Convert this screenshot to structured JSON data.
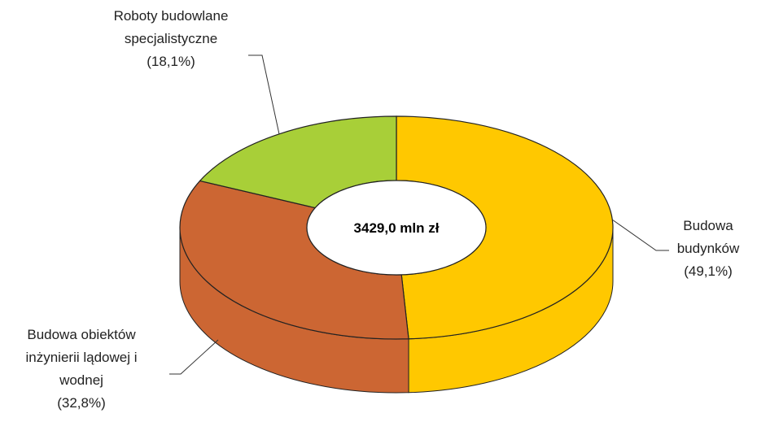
{
  "chart_data": {
    "type": "pie",
    "donut": true,
    "center_label": "3429,0 mln zł",
    "categories": [
      "Budowa budynków",
      "Budowa obiektów inżynierii lądowej i wodnej",
      "Roboty budowlane specjalistyczne"
    ],
    "values": [
      49.1,
      32.8,
      18.1
    ],
    "value_labels": [
      "(49,1%)",
      "(32,8%)",
      "(18,1%)"
    ],
    "colors": [
      "#ffc800",
      "#cc6633",
      "#a8cf38"
    ]
  }
}
